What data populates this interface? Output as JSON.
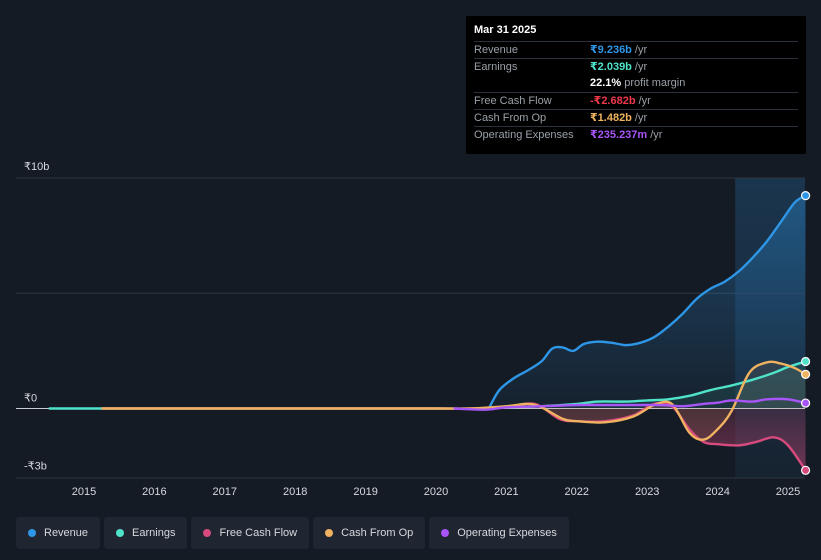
{
  "tooltip": {
    "date": "Mar 31 2025",
    "rows": [
      {
        "label": "Revenue",
        "value": "₹9.236b",
        "unit": "/yr",
        "color": "#2e96e6"
      },
      {
        "label": "Earnings",
        "value": "₹2.039b",
        "unit": "/yr",
        "color": "#4fe3c9"
      },
      {
        "label": "",
        "value": "22.1%",
        "unit": "profit margin",
        "color": "#ffffff"
      },
      {
        "label": "Free Cash Flow",
        "value": "-₹2.682b",
        "unit": "/yr",
        "color": "#f0384b"
      },
      {
        "label": "Cash From Op",
        "value": "₹1.482b",
        "unit": "/yr",
        "color": "#efb260"
      },
      {
        "label": "Operating Expenses",
        "value": "₹235.237m",
        "unit": "/yr",
        "color": "#a855f7"
      }
    ]
  },
  "legend": [
    {
      "label": "Revenue",
      "color": "#2e96e6"
    },
    {
      "label": "Earnings",
      "color": "#4fe3c9"
    },
    {
      "label": "Free Cash Flow",
      "color": "#d64a7d"
    },
    {
      "label": "Cash From Op",
      "color": "#efb260"
    },
    {
      "label": "Operating Expenses",
      "color": "#a855f7"
    }
  ],
  "chart_data": {
    "type": "line",
    "y_tick_labels": [
      "₹10b",
      "₹0",
      "-₹3b"
    ],
    "ylim": [
      -3,
      10
    ],
    "xlim": [
      2014.45,
      2025.3
    ],
    "x_ticks": [
      2015,
      2016,
      2017,
      2018,
      2019,
      2020,
      2021,
      2022,
      2023,
      2024,
      2025
    ],
    "forecast_shade_start": 2024.25,
    "series": [
      {
        "name": "Revenue",
        "color": "#2e96e6",
        "x": [
          2020.75,
          2020.9,
          2021.1,
          2021.3,
          2021.5,
          2021.65,
          2021.8,
          2021.95,
          2022.1,
          2022.3,
          2022.5,
          2022.7,
          2022.9,
          2023.1,
          2023.3,
          2023.5,
          2023.7,
          2023.9,
          2024.1,
          2024.3,
          2024.5,
          2024.7,
          2024.9,
          2025.1,
          2025.25
        ],
        "y": [
          0.0,
          0.8,
          1.3,
          1.65,
          2.05,
          2.6,
          2.65,
          2.5,
          2.8,
          2.9,
          2.85,
          2.75,
          2.85,
          3.1,
          3.55,
          4.1,
          4.75,
          5.2,
          5.5,
          5.95,
          6.55,
          7.25,
          8.1,
          8.95,
          9.236
        ]
      },
      {
        "name": "Earnings",
        "color": "#4fe3c9",
        "x": [
          2014.5,
          2015,
          2016,
          2017,
          2018,
          2019,
          2020,
          2020.75,
          2021.0,
          2021.5,
          2022.0,
          2022.3,
          2022.7,
          2023.0,
          2023.3,
          2023.6,
          2023.9,
          2024.2,
          2024.5,
          2024.8,
          2025.0,
          2025.25
        ],
        "y": [
          0,
          0,
          0,
          0,
          0,
          0,
          0,
          0.0,
          0.05,
          0.1,
          0.2,
          0.3,
          0.3,
          0.35,
          0.4,
          0.55,
          0.8,
          1.0,
          1.25,
          1.55,
          1.8,
          2.039
        ]
      },
      {
        "name": "Free Cash Flow",
        "color": "#d64a7d",
        "x": [
          2015.25,
          2016,
          2017,
          2018,
          2019,
          2020,
          2020.5,
          2021.0,
          2021.4,
          2021.75,
          2022.0,
          2022.4,
          2022.8,
          2023.1,
          2023.35,
          2023.6,
          2023.8,
          2024.0,
          2024.3,
          2024.55,
          2024.8,
          2025.0,
          2025.25
        ],
        "y": [
          0,
          0,
          0,
          0,
          0,
          0,
          0,
          0.05,
          0.2,
          -0.45,
          -0.55,
          -0.55,
          -0.3,
          0.2,
          0.1,
          -0.9,
          -1.45,
          -1.55,
          -1.6,
          -1.45,
          -1.25,
          -1.6,
          -2.682
        ]
      },
      {
        "name": "Cash From Op",
        "color": "#efb260",
        "x": [
          2015.25,
          2016,
          2017,
          2018,
          2019,
          2020,
          2020.5,
          2021.0,
          2021.3,
          2021.5,
          2021.8,
          2022.0,
          2022.4,
          2022.8,
          2023.1,
          2023.35,
          2023.6,
          2023.8,
          2024.0,
          2024.2,
          2024.45,
          2024.7,
          2024.9,
          2025.1,
          2025.25
        ],
        "y": [
          0,
          0,
          0,
          0,
          0,
          0,
          0,
          0.1,
          0.2,
          0.05,
          -0.45,
          -0.55,
          -0.6,
          -0.35,
          0.15,
          0.2,
          -1.05,
          -1.35,
          -0.9,
          -0.1,
          1.55,
          2.0,
          1.95,
          1.75,
          1.482
        ]
      },
      {
        "name": "Operating Expenses",
        "color": "#a855f7",
        "x": [
          2020.25,
          2020.7,
          2021.0,
          2021.5,
          2022.0,
          2022.4,
          2022.8,
          2023.2,
          2023.5,
          2023.8,
          2024.0,
          2024.2,
          2024.5,
          2024.7,
          2025.0,
          2025.25
        ],
        "y": [
          0,
          -0.05,
          0.05,
          0.1,
          0.15,
          0.15,
          0.15,
          0.15,
          0.1,
          0.2,
          0.25,
          0.35,
          0.3,
          0.4,
          0.4,
          0.235
        ]
      }
    ]
  }
}
